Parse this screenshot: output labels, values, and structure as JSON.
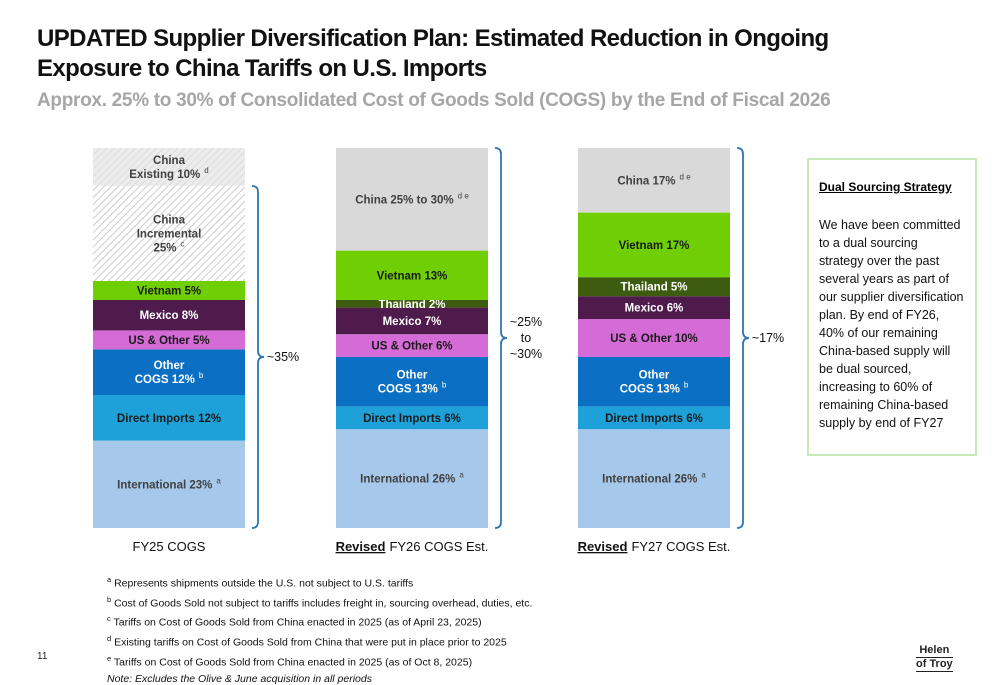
{
  "header": {
    "title_lines": [
      "UPDATED Supplier Diversification Plan: Estimated Reduction in Ongoing",
      "Exposure to China Tariffs on U.S. Imports"
    ],
    "subtitle": "Approx. 25% to 30% of Consolidated Cost of Goods Sold (COGS) by the End of Fiscal 2026"
  },
  "chart_data": {
    "type": "stacked_bar",
    "stacks": [
      {
        "category": {
          "label": "FY25 COGS"
        },
        "segments": [
          {
            "label": [
              "International 23%"
            ],
            "note": "a",
            "value": 23,
            "color": "#a6c9eb"
          },
          {
            "label": [
              "Direct Imports 12%"
            ],
            "value": 12,
            "color": "#1ea1d9"
          },
          {
            "label": [
              "Other",
              "COGS 12%"
            ],
            "note": "b",
            "value": 12,
            "color": "#0b70c4"
          },
          {
            "label": [
              "US & Other 5%"
            ],
            "value": 5,
            "color": "#d56bd6"
          },
          {
            "label": [
              "Mexico 8%"
            ],
            "value": 8,
            "color": "#4f1a4c"
          },
          {
            "label": [
              "Vietnam 5%"
            ],
            "value": 5,
            "color": "#70cf02"
          },
          {
            "label": [
              "China",
              "Incremental",
              "25%"
            ],
            "note": "c",
            "value": 25,
            "color": "#ffffff",
            "hatched": true
          },
          {
            "label": [
              "China",
              "Existing 10%"
            ],
            "note": "d",
            "value": 10,
            "color": "#ececec",
            "hatched": true
          }
        ],
        "brace": [
          "~35%"
        ]
      },
      {
        "category": {
          "underlined": "Revised",
          "label": "FY26 COGS Est."
        },
        "segments": [
          {
            "label": [
              "International 26%"
            ],
            "note": "a",
            "value": 26,
            "color": "#a6c9eb"
          },
          {
            "label": [
              "Direct Imports 6%"
            ],
            "value": 6,
            "color": "#1ea1d9"
          },
          {
            "label": [
              "Other",
              "COGS 13%"
            ],
            "note": "b",
            "value": 13,
            "color": "#0b70c4"
          },
          {
            "label": [
              "US & Other 6%"
            ],
            "value": 6,
            "color": "#d56bd6"
          },
          {
            "label": [
              "Mexico 7%"
            ],
            "value": 7,
            "color": "#4f1a4c"
          },
          {
            "label": [
              "Thailand 2%"
            ],
            "value": 2,
            "color": "#3e5c0f"
          },
          {
            "label": [
              "Vietnam 13%"
            ],
            "value": 13,
            "color": "#70cf02"
          },
          {
            "label": [
              "China 25% to 30%"
            ],
            "note": "d e",
            "value": 27,
            "color": "#d9d9d9"
          }
        ],
        "brace": [
          "~25%",
          "to",
          "~30%"
        ]
      },
      {
        "category": {
          "underlined": "Revised",
          "label": "FY27 COGS Est."
        },
        "segments": [
          {
            "label": [
              "International 26%"
            ],
            "note": "a",
            "value": 26,
            "color": "#a6c9eb"
          },
          {
            "label": [
              "Direct Imports 6%"
            ],
            "value": 6,
            "color": "#1ea1d9"
          },
          {
            "label": [
              "Other",
              "COGS 13%"
            ],
            "note": "b",
            "value": 13,
            "color": "#0b70c4"
          },
          {
            "label": [
              "US & Other 10%"
            ],
            "value": 10,
            "color": "#d56bd6"
          },
          {
            "label": [
              "Mexico 6%"
            ],
            "value": 6,
            "color": "#4f1a4c"
          },
          {
            "label": [
              "Thailand 5%"
            ],
            "value": 5,
            "color": "#3e5c0f"
          },
          {
            "label": [
              "Vietnam 17%"
            ],
            "value": 17,
            "color": "#70cf02"
          },
          {
            "label": [
              "China 17%"
            ],
            "note": "d e",
            "value": 17,
            "color": "#d9d9d9"
          }
        ],
        "brace": [
          "~17%"
        ]
      }
    ]
  },
  "sidebar": {
    "title": "Dual Sourcing Strategy",
    "text": "We have been committed to a dual sourcing strategy over the past several years as part of our supplier diversification plan. By end of FY26, 40% of our remaining China-based supply will be dual sourced, increasing to 60% of remaining China-based supply by end of FY27"
  },
  "footnotes": [
    {
      "mark": "a",
      "text": "Represents shipments outside the U.S. not subject to U.S. tariffs"
    },
    {
      "mark": "b",
      "text": "Cost of Goods Sold not subject to tariffs includes freight in, sourcing overhead, duties, etc."
    },
    {
      "mark": "c",
      "text": "Tariffs on Cost of Goods Sold from China enacted in 2025 (as of April 23, 2025)"
    },
    {
      "mark": "d",
      "text": "Existing tariffs on Cost of Goods Sold from China that were put in place prior to 2025"
    },
    {
      "mark": "e",
      "text": "Tariffs on Cost of Goods Sold from China enacted in 2025 (as of Oct 8, 2025)"
    }
  ],
  "note": "Note: Excludes the Olive & June acquisition in all periods",
  "page_number": "11",
  "logo": [
    "Helen",
    "of Troy"
  ]
}
